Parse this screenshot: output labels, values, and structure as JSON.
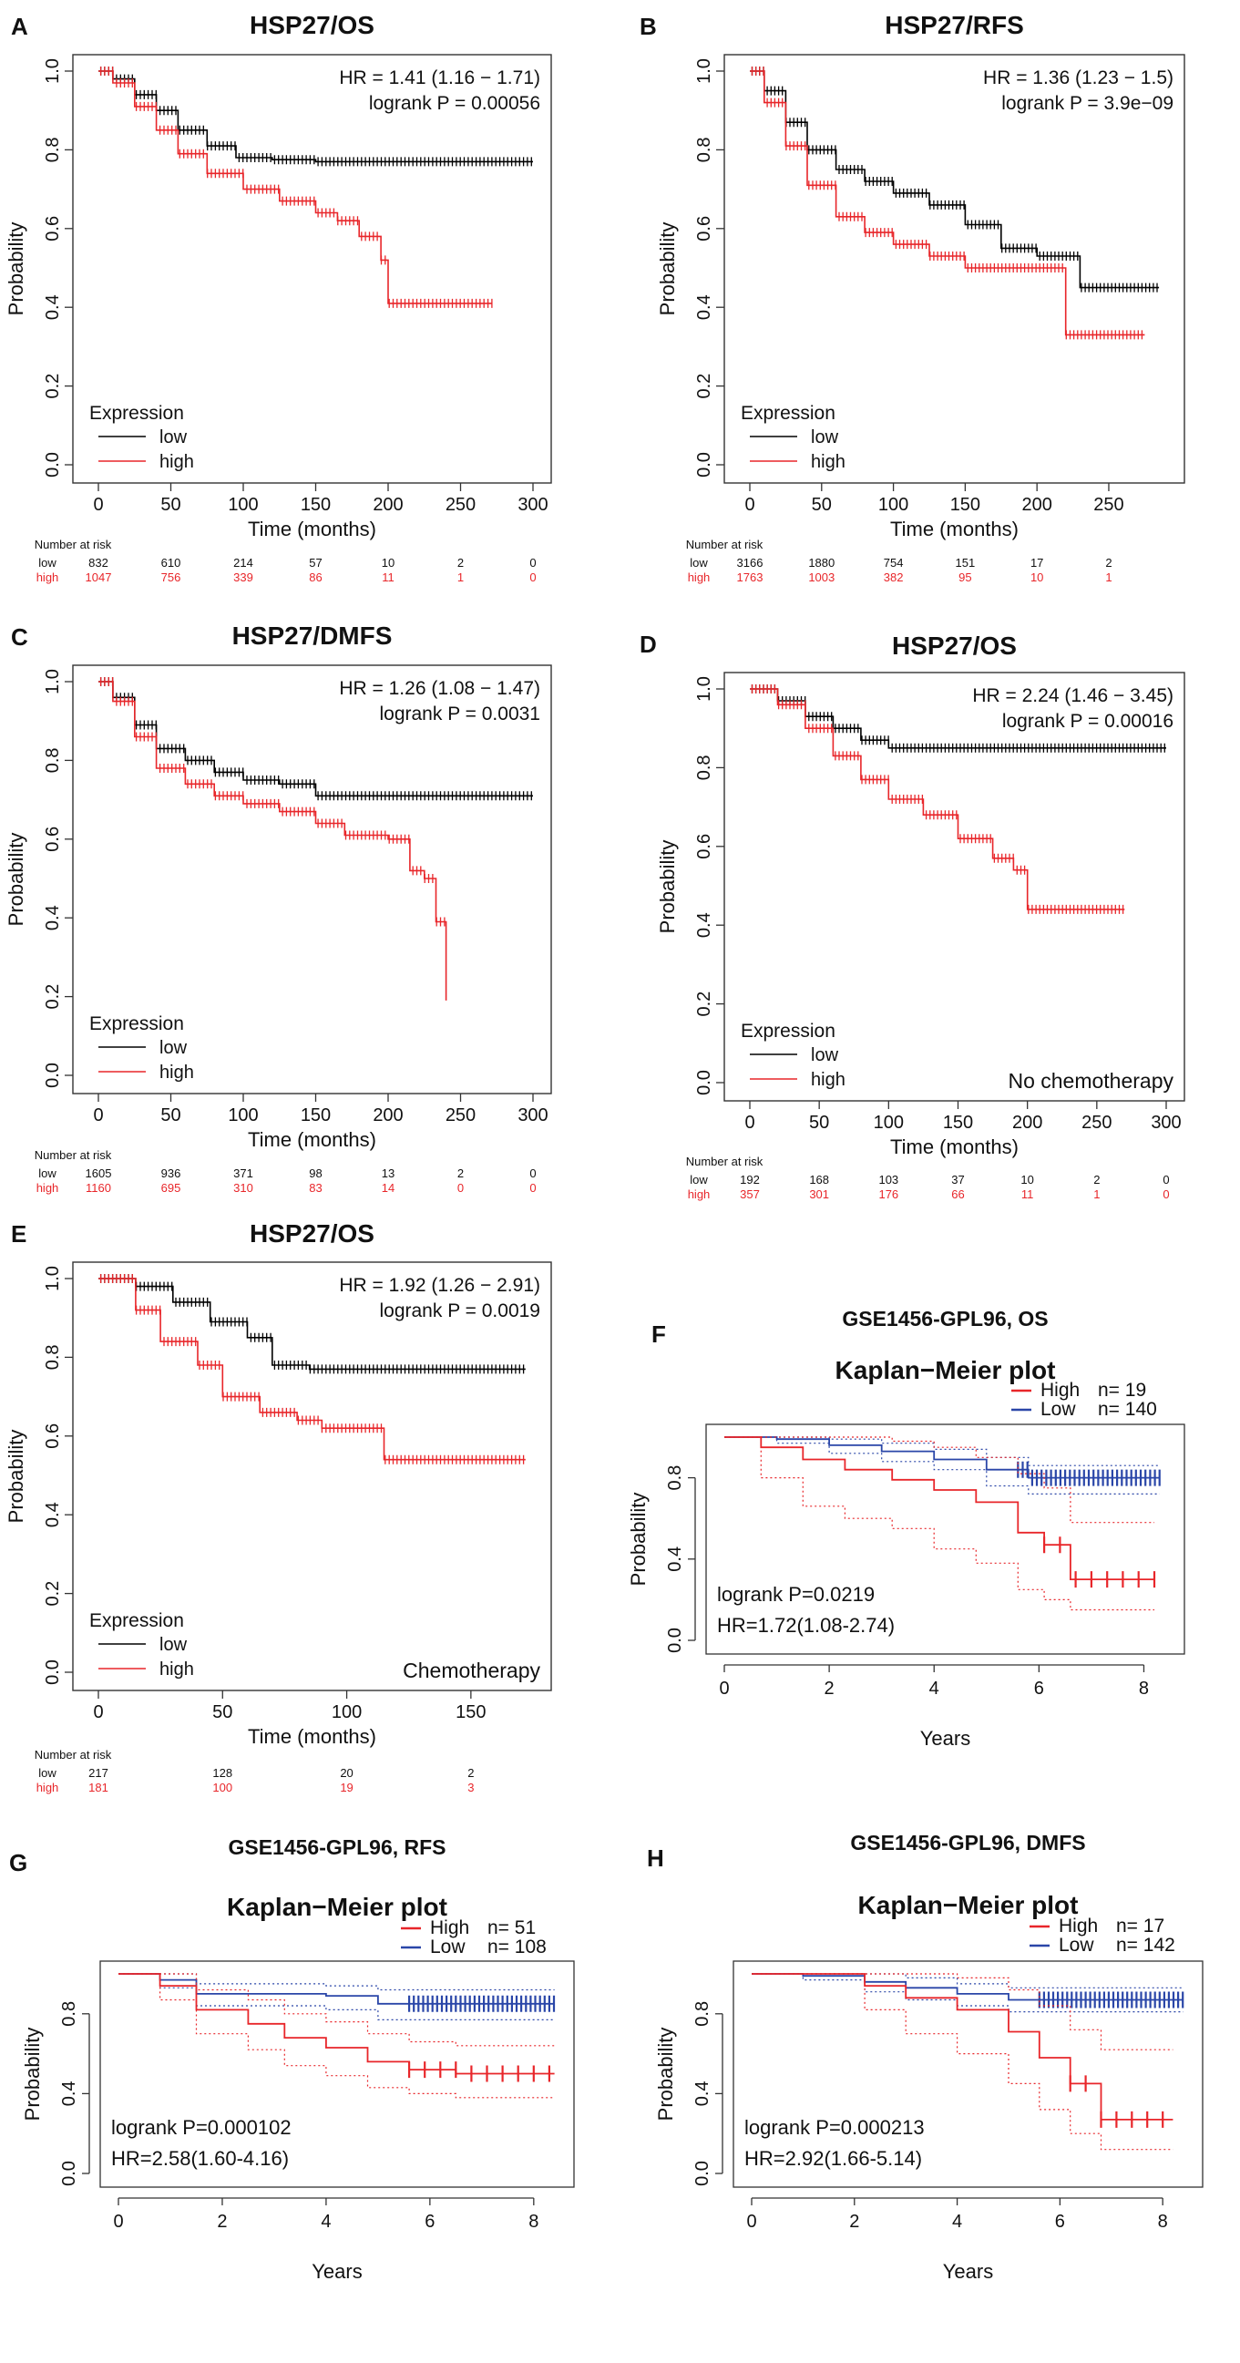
{
  "colors": {
    "low": "#000000",
    "high": "#e8262a",
    "blue": "#2a46a8",
    "axis": "#333333"
  },
  "chart_data": [
    {
      "panel": "A",
      "title": "HSP27/OS",
      "type": "km",
      "hr": "HR = 1.41 (1.16 − 1.71)",
      "p": "logrank P = 0.00056",
      "xlabel": "Time (months)",
      "ylabel": "Probability",
      "xlim": [
        0,
        300
      ],
      "xticks": [
        0,
        50,
        100,
        150,
        200,
        250,
        300
      ],
      "yticks": [
        "0.0",
        "0.2",
        "0.4",
        "0.6",
        "0.8",
        "1.0"
      ],
      "legend_title": "Expression",
      "legend": [
        "low",
        "high"
      ],
      "note": "",
      "series": [
        {
          "name": "low",
          "color": "low",
          "x": [
            0,
            10,
            25,
            40,
            55,
            75,
            95,
            120,
            150,
            200,
            300
          ],
          "y": [
            1.0,
            0.98,
            0.94,
            0.9,
            0.85,
            0.81,
            0.78,
            0.775,
            0.77,
            0.77,
            0.77
          ]
        },
        {
          "name": "high",
          "color": "high",
          "x": [
            0,
            10,
            25,
            40,
            55,
            75,
            100,
            125,
            150,
            165,
            180,
            195,
            200,
            272
          ],
          "y": [
            1.0,
            0.97,
            0.91,
            0.85,
            0.79,
            0.74,
            0.7,
            0.67,
            0.64,
            0.62,
            0.58,
            0.52,
            0.41,
            0.41
          ]
        }
      ],
      "risk_title": "Number at risk",
      "risk": [
        {
          "name": "low",
          "values": [
            "832",
            "610",
            "214",
            "57",
            "10",
            "2",
            "0"
          ]
        },
        {
          "name": "high",
          "values": [
            "1047",
            "756",
            "339",
            "86",
            "11",
            "1",
            "0"
          ]
        }
      ]
    },
    {
      "panel": "B",
      "title": "HSP27/RFS",
      "type": "km",
      "hr": "HR = 1.36 (1.23 − 1.5)",
      "p": "logrank P = 3.9e−09",
      "xlabel": "Time (months)",
      "ylabel": "Probability",
      "xlim": [
        0,
        290
      ],
      "xticks": [
        0,
        50,
        100,
        150,
        200,
        250
      ],
      "yticks": [
        "0.0",
        "0.2",
        "0.4",
        "0.6",
        "0.8",
        "1.0"
      ],
      "legend_title": "Expression",
      "legend": [
        "low",
        "high"
      ],
      "note": "",
      "series": [
        {
          "name": "low",
          "color": "low",
          "x": [
            0,
            10,
            25,
            40,
            60,
            80,
            100,
            125,
            150,
            175,
            200,
            230,
            285
          ],
          "y": [
            1.0,
            0.95,
            0.87,
            0.8,
            0.75,
            0.72,
            0.69,
            0.66,
            0.61,
            0.55,
            0.53,
            0.45,
            0.45
          ]
        },
        {
          "name": "high",
          "color": "high",
          "x": [
            0,
            10,
            25,
            40,
            60,
            80,
            100,
            125,
            150,
            175,
            210,
            220,
            275
          ],
          "y": [
            1.0,
            0.92,
            0.81,
            0.71,
            0.63,
            0.59,
            0.56,
            0.53,
            0.5,
            0.5,
            0.5,
            0.33,
            0.33
          ]
        }
      ],
      "risk_title": "Number at risk",
      "risk": [
        {
          "name": "low",
          "values": [
            "3166",
            "1880",
            "754",
            "151",
            "17",
            "2"
          ]
        },
        {
          "name": "high",
          "values": [
            "1763",
            "1003",
            "382",
            "95",
            "10",
            "1"
          ]
        }
      ]
    },
    {
      "panel": "C",
      "title": "HSP27/DMFS",
      "type": "km",
      "hr": "HR = 1.26 (1.08 − 1.47)",
      "p": "logrank P = 0.0031",
      "xlabel": "Time (months)",
      "ylabel": "Probability",
      "xlim": [
        0,
        300
      ],
      "xticks": [
        0,
        50,
        100,
        150,
        200,
        250,
        300
      ],
      "yticks": [
        "0.0",
        "0.2",
        "0.4",
        "0.6",
        "0.8",
        "1.0"
      ],
      "legend_title": "Expression",
      "legend": [
        "low",
        "high"
      ],
      "note": "",
      "series": [
        {
          "name": "low",
          "color": "low",
          "x": [
            0,
            10,
            25,
            40,
            60,
            80,
            100,
            125,
            150,
            300
          ],
          "y": [
            1.0,
            0.96,
            0.89,
            0.83,
            0.8,
            0.77,
            0.75,
            0.74,
            0.71,
            0.71
          ]
        },
        {
          "name": "high",
          "color": "high",
          "x": [
            0,
            10,
            25,
            40,
            60,
            80,
            100,
            125,
            150,
            170,
            200,
            215,
            225,
            233,
            240
          ],
          "y": [
            1.0,
            0.95,
            0.86,
            0.78,
            0.74,
            0.71,
            0.69,
            0.67,
            0.64,
            0.61,
            0.6,
            0.52,
            0.5,
            0.39,
            0.19
          ]
        }
      ],
      "risk_title": "Number at risk",
      "risk": [
        {
          "name": "low",
          "values": [
            "1605",
            "936",
            "371",
            "98",
            "13",
            "2",
            "0"
          ]
        },
        {
          "name": "high",
          "values": [
            "1160",
            "695",
            "310",
            "83",
            "14",
            "0",
            "0"
          ]
        }
      ]
    },
    {
      "panel": "D",
      "title": "HSP27/OS",
      "type": "km",
      "hr": "HR = 2.24 (1.46 − 3.45)",
      "p": "logrank P = 0.00016",
      "xlabel": "Time (months)",
      "ylabel": "Probability",
      "xlim": [
        0,
        300
      ],
      "xticks": [
        0,
        50,
        100,
        150,
        200,
        250,
        300
      ],
      "yticks": [
        "0.0",
        "0.2",
        "0.4",
        "0.6",
        "0.8",
        "1.0"
      ],
      "legend_title": "Expression",
      "legend": [
        "low",
        "high"
      ],
      "note": "No chemotherapy",
      "series": [
        {
          "name": "low",
          "color": "low",
          "x": [
            0,
            20,
            40,
            60,
            80,
            100,
            300
          ],
          "y": [
            1.0,
            0.97,
            0.93,
            0.9,
            0.87,
            0.85,
            0.85
          ]
        },
        {
          "name": "high",
          "color": "high",
          "x": [
            0,
            20,
            40,
            60,
            80,
            100,
            125,
            150,
            175,
            190,
            200,
            270
          ],
          "y": [
            1.0,
            0.96,
            0.9,
            0.83,
            0.77,
            0.72,
            0.68,
            0.62,
            0.57,
            0.54,
            0.44,
            0.44
          ]
        }
      ],
      "risk_title": "Number at risk",
      "risk": [
        {
          "name": "low",
          "values": [
            "192",
            "168",
            "103",
            "37",
            "10",
            "2",
            "0"
          ]
        },
        {
          "name": "high",
          "values": [
            "357",
            "301",
            "176",
            "66",
            "11",
            "1",
            "0"
          ]
        }
      ]
    },
    {
      "panel": "E",
      "title": "HSP27/OS",
      "type": "km",
      "hr": "HR = 1.92 (1.26 − 2.91)",
      "p": "logrank P = 0.0019",
      "xlabel": "Time (months)",
      "ylabel": "Probability",
      "xlim": [
        0,
        175
      ],
      "xticks": [
        0,
        50,
        100,
        150
      ],
      "yticks": [
        "0.0",
        "0.2",
        "0.4",
        "0.6",
        "0.8",
        "1.0"
      ],
      "legend_title": "Expression",
      "legend": [
        "low",
        "high"
      ],
      "note": "Chemotherapy",
      "series": [
        {
          "name": "low",
          "color": "low",
          "x": [
            0,
            15,
            30,
            45,
            60,
            70,
            85,
            100,
            172
          ],
          "y": [
            1.0,
            0.98,
            0.94,
            0.89,
            0.85,
            0.78,
            0.77,
            0.77,
            0.77
          ]
        },
        {
          "name": "high",
          "color": "high",
          "x": [
            0,
            15,
            25,
            40,
            50,
            65,
            80,
            90,
            105,
            115,
            172
          ],
          "y": [
            1.0,
            0.92,
            0.84,
            0.78,
            0.7,
            0.66,
            0.64,
            0.62,
            0.62,
            0.54,
            0.54
          ]
        }
      ],
      "risk_title": "Number at risk",
      "risk": [
        {
          "name": "low",
          "values": [
            "217",
            "128",
            "20",
            "2"
          ]
        },
        {
          "name": "high",
          "values": [
            "181",
            "100",
            "19",
            "3"
          ]
        }
      ]
    },
    {
      "panel": "F",
      "type": "km_ci",
      "header": "GSE1456-GPL96, OS",
      "title": "Kaplan−Meier plot",
      "xlabel": "Years",
      "ylabel": "Probability",
      "xlim": [
        0,
        8.6
      ],
      "xticks": [
        "0",
        "2",
        "4",
        "6",
        "8"
      ],
      "yticks": [
        "0.0",
        "0.4",
        "0.8"
      ],
      "legend": [
        {
          "label": "High",
          "n": "n= 19",
          "color": "high"
        },
        {
          "label": "Low",
          "n": "n= 140",
          "color": "blue"
        }
      ],
      "p": "logrank P=0.0219",
      "hr": "HR=1.72(1.08-2.74)",
      "series": [
        {
          "name": "Low",
          "color": "blue",
          "x": [
            0,
            1,
            2,
            3,
            4,
            5,
            5.8,
            8.3
          ],
          "y": [
            1.0,
            0.99,
            0.96,
            0.93,
            0.89,
            0.84,
            0.8,
            0.8
          ],
          "ci_upper": [
            1.0,
            1.0,
            0.99,
            0.97,
            0.94,
            0.9,
            0.86,
            0.86
          ],
          "ci_lower": [
            1.0,
            0.97,
            0.92,
            0.88,
            0.84,
            0.76,
            0.72,
            0.72
          ]
        },
        {
          "name": "High",
          "color": "high",
          "x": [
            0,
            0.7,
            1.5,
            2.3,
            3.2,
            4,
            4.8,
            5.6,
            6.1,
            6.6,
            8.2
          ],
          "y": [
            1.0,
            0.95,
            0.89,
            0.84,
            0.79,
            0.74,
            0.68,
            0.53,
            0.47,
            0.3,
            0.3
          ],
          "ci_upper": [
            1.0,
            1.0,
            1.0,
            1.0,
            0.98,
            0.95,
            0.9,
            0.82,
            0.75,
            0.58,
            0.58
          ],
          "ci_lower": [
            1.0,
            0.8,
            0.66,
            0.6,
            0.55,
            0.45,
            0.38,
            0.25,
            0.2,
            0.15,
            0.15
          ]
        }
      ]
    },
    {
      "panel": "G",
      "type": "km_ci",
      "header": "GSE1456-GPL96, RFS",
      "title": "Kaplan−Meier plot",
      "xlabel": "Years",
      "ylabel": "Probability",
      "xlim": [
        0,
        8.6
      ],
      "xticks": [
        "0",
        "2",
        "4",
        "6",
        "8"
      ],
      "yticks": [
        "0.0",
        "0.4",
        "0.8"
      ],
      "legend": [
        {
          "label": "High",
          "n": "n= 51",
          "color": "high"
        },
        {
          "label": "Low",
          "n": "n= 108",
          "color": "blue"
        }
      ],
      "p": "logrank P=0.000102",
      "hr": "HR=2.58(1.60-4.16)",
      "series": [
        {
          "name": "Low",
          "color": "blue",
          "x": [
            0,
            0.8,
            1.5,
            4,
            5,
            8.4
          ],
          "y": [
            1.0,
            0.97,
            0.9,
            0.89,
            0.85,
            0.85
          ],
          "ci_upper": [
            1.0,
            1.0,
            0.95,
            0.94,
            0.92,
            0.92
          ],
          "ci_lower": [
            1.0,
            0.93,
            0.84,
            0.82,
            0.77,
            0.77
          ]
        },
        {
          "name": "High",
          "color": "high",
          "x": [
            0,
            0.8,
            1.5,
            2.5,
            3.2,
            4,
            4.8,
            5.6,
            6.5,
            8.4
          ],
          "y": [
            1.0,
            0.94,
            0.82,
            0.75,
            0.68,
            0.63,
            0.56,
            0.52,
            0.5,
            0.5
          ],
          "ci_upper": [
            1.0,
            1.0,
            0.92,
            0.87,
            0.8,
            0.76,
            0.7,
            0.66,
            0.64,
            0.64
          ],
          "ci_lower": [
            1.0,
            0.87,
            0.7,
            0.62,
            0.54,
            0.49,
            0.43,
            0.4,
            0.38,
            0.38
          ]
        }
      ]
    },
    {
      "panel": "H",
      "type": "km_ci",
      "header": "GSE1456-GPL96, DMFS",
      "title": "Kaplan−Meier plot",
      "xlabel": "Years",
      "ylabel": "Probability",
      "xlim": [
        0,
        8.6
      ],
      "xticks": [
        "0",
        "2",
        "4",
        "6",
        "8"
      ],
      "yticks": [
        "0.0",
        "0.4",
        "0.8"
      ],
      "legend": [
        {
          "label": "High",
          "n": "n= 17",
          "color": "high"
        },
        {
          "label": "Low",
          "n": "n= 142",
          "color": "blue"
        }
      ],
      "p": "logrank P=0.000213",
      "hr": "HR=2.92(1.66-5.14)",
      "series": [
        {
          "name": "Low",
          "color": "blue",
          "x": [
            0,
            1,
            2.2,
            3,
            4,
            5,
            8.4
          ],
          "y": [
            1.0,
            0.99,
            0.96,
            0.93,
            0.9,
            0.87,
            0.87
          ],
          "ci_upper": [
            1.0,
            1.0,
            1.0,
            0.98,
            0.95,
            0.93,
            0.93
          ],
          "ci_lower": [
            1.0,
            0.97,
            0.91,
            0.87,
            0.84,
            0.81,
            0.81
          ]
        },
        {
          "name": "High",
          "color": "high",
          "x": [
            0,
            2.2,
            3,
            4,
            5,
            5.6,
            6.2,
            6.8,
            8.2
          ],
          "y": [
            1.0,
            0.94,
            0.88,
            0.82,
            0.71,
            0.58,
            0.45,
            0.27,
            0.27
          ],
          "ci_upper": [
            1.0,
            1.0,
            1.0,
            0.98,
            0.92,
            0.84,
            0.72,
            0.62,
            0.62
          ],
          "ci_lower": [
            1.0,
            0.82,
            0.7,
            0.6,
            0.45,
            0.32,
            0.2,
            0.12,
            0.12
          ]
        }
      ]
    }
  ]
}
